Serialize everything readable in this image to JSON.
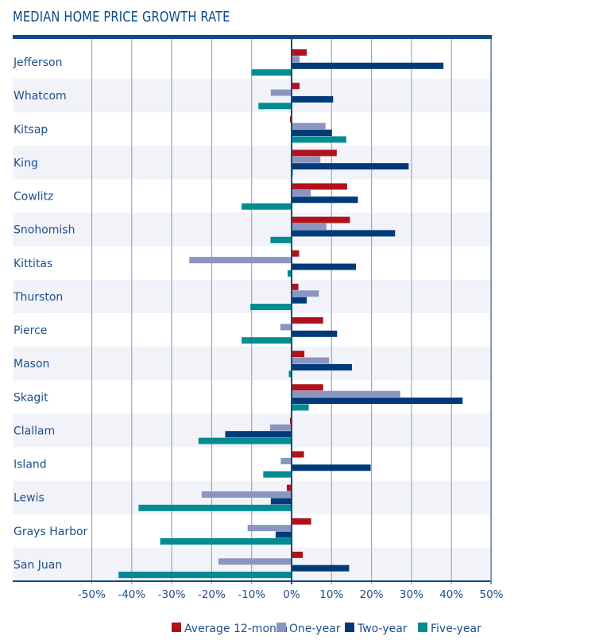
{
  "chart_data": {
    "type": "bar",
    "orientation": "horizontal",
    "title": "MEDIAN HOME PRICE GROWTH RATE",
    "xlabel": "",
    "ylabel": "",
    "xlim": [
      -50,
      50
    ],
    "x_ticks": [
      -50,
      -40,
      -30,
      -20,
      -10,
      0,
      10,
      20,
      30,
      40,
      50
    ],
    "x_tick_labels": [
      "-50%",
      "-40%",
      "-30%",
      "-20%",
      "-10%",
      "0%",
      "10%",
      "20%",
      "30%",
      "40%",
      "50%"
    ],
    "grid": true,
    "legend_position": "bottom-right",
    "categories": [
      "Jefferson",
      "Whatcom",
      "Kitsap",
      "King",
      "Cowlitz",
      "Snohomish",
      "Kittitas",
      "Thurston",
      "Pierce",
      "Mason",
      "Skagit",
      "Clallam",
      "Island",
      "Lewis",
      "Grays Harbor",
      "San Juan"
    ],
    "series": [
      {
        "name": "Average 12-month",
        "color": "#B0121B",
        "values": [
          3.8,
          2.0,
          -0.4,
          11.3,
          13.9,
          14.6,
          1.9,
          1.7,
          7.9,
          3.2,
          7.9,
          -0.4,
          3.1,
          -1.2,
          4.9,
          2.8
        ]
      },
      {
        "name": "One-year",
        "color": "#8A96C0",
        "values": [
          2.0,
          -5.2,
          8.5,
          7.2,
          4.8,
          8.7,
          -25.6,
          6.8,
          -2.8,
          9.4,
          27.2,
          -5.4,
          -2.7,
          -22.5,
          -11.0,
          -18.3
        ]
      },
      {
        "name": "Two-year",
        "color": "#003A78",
        "values": [
          38.0,
          10.4,
          10.1,
          29.3,
          16.6,
          25.9,
          16.1,
          3.8,
          11.4,
          15.1,
          42.8,
          -16.6,
          19.8,
          -5.2,
          -4.0,
          14.4
        ]
      },
      {
        "name": "Five-year",
        "color": "#008C92",
        "values": [
          -10.0,
          -8.3,
          13.7,
          0.3,
          -12.5,
          -5.3,
          -1.0,
          -10.3,
          -12.5,
          -0.7,
          4.3,
          -23.3,
          -7.1,
          -38.3,
          -32.9,
          -43.3
        ]
      }
    ]
  },
  "colors": {
    "title": "#0E4A86",
    "axis": "#0E4A86",
    "grid": "#9AA6C8",
    "band": "#F2F3F8"
  }
}
